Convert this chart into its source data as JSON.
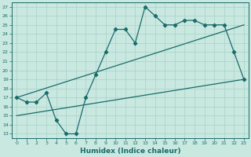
{
  "xlabel": "Humidex (Indice chaleur)",
  "xlim": [
    -0.5,
    23.5
  ],
  "ylim": [
    12.5,
    27.5
  ],
  "yticks": [
    13,
    14,
    15,
    16,
    17,
    18,
    19,
    20,
    21,
    22,
    23,
    24,
    25,
    26,
    27
  ],
  "xticks": [
    0,
    1,
    2,
    3,
    4,
    5,
    6,
    7,
    8,
    9,
    10,
    11,
    12,
    13,
    14,
    15,
    16,
    17,
    18,
    19,
    20,
    21,
    22,
    23
  ],
  "bg_color": "#c8e8e0",
  "grid_color": "#aed4cc",
  "line_color": "#1a6b6b",
  "line1_x": [
    0,
    1,
    2,
    3,
    4,
    5,
    6,
    7,
    8,
    9,
    10,
    11,
    12,
    13,
    14,
    15,
    16,
    17,
    18,
    19,
    20,
    21,
    22,
    23
  ],
  "line1_y": [
    17,
    16.5,
    16.5,
    17.5,
    14.5,
    13,
    13,
    17,
    19.5,
    22,
    24.5,
    24.5,
    23,
    27,
    26,
    25,
    25,
    25.5,
    25.5,
    25,
    25,
    25,
    22,
    19
  ],
  "line2_x": [
    0,
    23
  ],
  "line2_y": [
    17,
    25
  ],
  "line3_x": [
    0,
    23
  ],
  "line3_y": [
    15,
    19
  ],
  "marker": "D",
  "marker_size": 2.2,
  "linewidth": 0.9
}
